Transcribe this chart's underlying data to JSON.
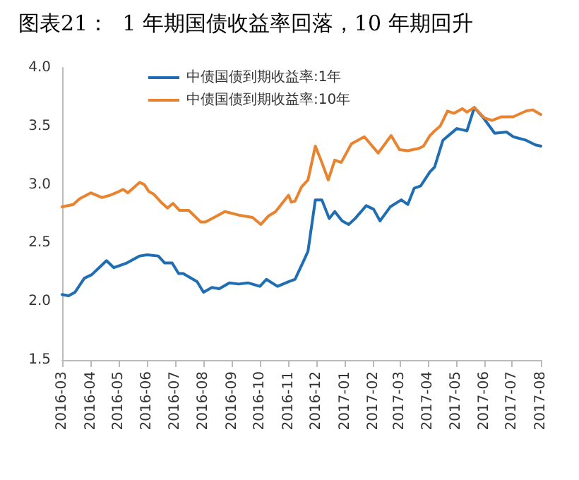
{
  "chart_data": {
    "type": "line",
    "title": "图表21：  1 年期国债收益率回落，10 年期回升",
    "xlim": [
      "2016-03",
      "2017-08"
    ],
    "xticks": [
      "2016-03",
      "2016-04",
      "2016-05",
      "2016-06",
      "2016-07",
      "2016-08",
      "2016-09",
      "2016-10",
      "2016-11",
      "2016-12",
      "2017-01",
      "2017-02",
      "2017-03",
      "2017-04",
      "2017-05",
      "2017-06",
      "2017-07",
      "2017-08"
    ],
    "ylim": [
      1.5,
      4.0
    ],
    "yticks": [
      {
        "value": 1.5,
        "label": "1.5"
      },
      {
        "value": 2,
        "label": "2.0"
      },
      {
        "value": 2.5,
        "label": "2.5"
      },
      {
        "value": 3,
        "label": "3.0"
      },
      {
        "value": 3.5,
        "label": "3.5"
      },
      {
        "value": 4,
        "label": "4.0"
      }
    ],
    "grid": false,
    "legend": "top",
    "marker": "none",
    "line_style": "solid",
    "series": [
      {
        "name": "中债国债到期收益率:1年",
        "color": "#1f6db3",
        "x": [
          "2016-03-01",
          "2016-03-08",
          "2016-03-15",
          "2016-03-25",
          "2016-04-02",
          "2016-04-10",
          "2016-04-18",
          "2016-04-26",
          "2016-05-03",
          "2016-05-10",
          "2016-05-24",
          "2016-06-01",
          "2016-06-13",
          "2016-06-20",
          "2016-06-28",
          "2016-07-05",
          "2016-07-10",
          "2016-07-25",
          "2016-08-01",
          "2016-08-10",
          "2016-08-18",
          "2016-08-29",
          "2016-09-08",
          "2016-09-18",
          "2016-10-01",
          "2016-10-08",
          "2016-10-20",
          "2016-11-01",
          "2016-11-08",
          "2016-11-18",
          "2016-11-22",
          "2016-11-30",
          "2016-12-07",
          "2016-12-15",
          "2016-12-21",
          "2016-12-29",
          "2017-01-05",
          "2017-01-12",
          "2017-01-24",
          "2017-02-01",
          "2017-02-08",
          "2017-02-19",
          "2017-03-03",
          "2017-03-10",
          "2017-03-17",
          "2017-03-24",
          "2017-04-03",
          "2017-04-08",
          "2017-04-17",
          "2017-05-02",
          "2017-05-13",
          "2017-05-21",
          "2017-05-30",
          "2017-06-12",
          "2017-06-25",
          "2017-07-02",
          "2017-07-16",
          "2017-07-26",
          "2017-08-01"
        ],
        "values": [
          2.06,
          2.05,
          2.08,
          2.2,
          2.23,
          2.29,
          2.35,
          2.29,
          2.31,
          2.33,
          2.39,
          2.4,
          2.39,
          2.33,
          2.33,
          2.24,
          2.24,
          2.17,
          2.08,
          2.12,
          2.11,
          2.16,
          2.15,
          2.16,
          2.13,
          2.19,
          2.13,
          2.17,
          2.19,
          2.36,
          2.43,
          2.87,
          2.87,
          2.71,
          2.77,
          2.69,
          2.66,
          2.71,
          2.82,
          2.79,
          2.69,
          2.81,
          2.87,
          2.83,
          2.97,
          2.99,
          3.11,
          3.15,
          3.38,
          3.48,
          3.46,
          3.66,
          3.58,
          3.44,
          3.45,
          3.41,
          3.38,
          3.34,
          3.33
        ]
      },
      {
        "name": "中债国债到期收益率:10年",
        "color": "#e8832f",
        "x": [
          "2016-03-01",
          "2016-03-13",
          "2016-03-20",
          "2016-04-01",
          "2016-04-13",
          "2016-04-22",
          "2016-05-01",
          "2016-05-06",
          "2016-05-11",
          "2016-05-24",
          "2016-05-29",
          "2016-06-03",
          "2016-06-08",
          "2016-06-16",
          "2016-06-23",
          "2016-06-29",
          "2016-07-06",
          "2016-07-16",
          "2016-07-29",
          "2016-08-03",
          "2016-08-15",
          "2016-08-24",
          "2016-09-08",
          "2016-09-23",
          "2016-10-02",
          "2016-10-10",
          "2016-10-18",
          "2016-11-01",
          "2016-11-04",
          "2016-11-08",
          "2016-11-15",
          "2016-11-22",
          "2016-11-30",
          "2016-12-07",
          "2016-12-14",
          "2016-12-21",
          "2016-12-28",
          "2017-01-08",
          "2017-01-22",
          "2017-02-06",
          "2017-02-20",
          "2017-03-01",
          "2017-03-10",
          "2017-03-22",
          "2017-03-27",
          "2017-04-03",
          "2017-04-08",
          "2017-04-14",
          "2017-04-22",
          "2017-04-29",
          "2017-05-08",
          "2017-05-13",
          "2017-05-21",
          "2017-06-01",
          "2017-06-09",
          "2017-06-19",
          "2017-07-02",
          "2017-07-16",
          "2017-07-23",
          "2017-08-01"
        ],
        "values": [
          2.81,
          2.83,
          2.88,
          2.93,
          2.89,
          2.91,
          2.94,
          2.96,
          2.93,
          3.02,
          3.0,
          2.94,
          2.92,
          2.85,
          2.8,
          2.84,
          2.78,
          2.78,
          2.68,
          2.68,
          2.73,
          2.77,
          2.74,
          2.72,
          2.66,
          2.73,
          2.77,
          2.91,
          2.85,
          2.86,
          2.98,
          3.04,
          3.33,
          3.19,
          3.04,
          3.21,
          3.19,
          3.35,
          3.41,
          3.27,
          3.42,
          3.3,
          3.29,
          3.31,
          3.33,
          3.42,
          3.46,
          3.5,
          3.63,
          3.61,
          3.65,
          3.62,
          3.66,
          3.57,
          3.55,
          3.58,
          3.58,
          3.63,
          3.64,
          3.6
        ]
      }
    ]
  }
}
